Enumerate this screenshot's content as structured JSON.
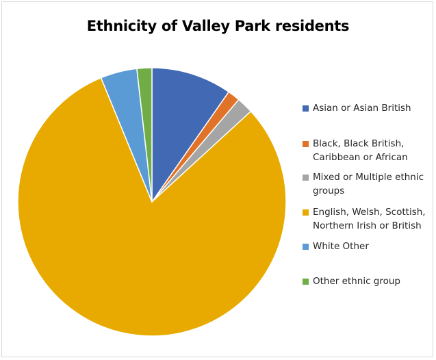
{
  "chart_data": {
    "type": "pie",
    "title": "Ethnicity of Valley Park residents",
    "legend_position": "right",
    "categories": [
      "Asian or Asian British",
      "Black, Black British, Caribbean or African",
      "Mixed or Multiple ethnic groups",
      "English, Welsh, Scottish, Northern Irish or British",
      "White Other",
      "Other ethnic group"
    ],
    "legend_labels": [
      "Asian or Asian British",
      "Black, Black British,\nCaribbean or African",
      "Mixed or Multiple ethnic\ngroups",
      " English, Welsh, Scottish,\nNorthern Irish or British",
      "White Other",
      "Other ethnic group"
    ],
    "values": [
      9.7,
      1.5,
      2.0,
      80.6,
      4.4,
      1.8
    ],
    "colors": [
      "#4169B4",
      "#E07328",
      "#A5A5A5",
      "#E8AA00",
      "#5B9BD5",
      "#70AD47"
    ]
  }
}
